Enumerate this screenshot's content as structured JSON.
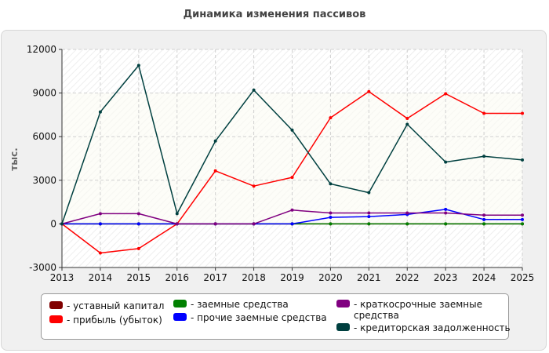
{
  "chart_data": {
    "type": "line",
    "title": "Динамика изменения пассивов",
    "ylabel": "тыс.",
    "xlabel": "",
    "x": [
      "2013",
      "2014",
      "2015",
      "2016",
      "2017",
      "2018",
      "2019",
      "2020",
      "2021",
      "2022",
      "2023",
      "2024",
      "2025"
    ],
    "ylim": [
      -3000,
      12000
    ],
    "yticks": [
      "-3000",
      "0",
      "3000",
      "6000",
      "9000",
      "12000"
    ],
    "grid": true,
    "legend_position": "bottom",
    "series": [
      {
        "name": "- уставный капитал",
        "color": "#800000",
        "values": [
          0,
          0,
          0,
          0,
          0,
          0,
          0,
          0,
          0,
          0,
          0,
          0,
          0
        ]
      },
      {
        "name": "- прибыль (убыток)",
        "color": "#ff0000",
        "values": [
          0,
          -2000,
          -1700,
          0,
          3650,
          2600,
          3200,
          7300,
          9100,
          7250,
          8950,
          7600,
          7600
        ]
      },
      {
        "name": "- заемные средства",
        "color": "#008000",
        "values": [
          0,
          0,
          0,
          0,
          0,
          0,
          0,
          0,
          0,
          0,
          0,
          0,
          0
        ]
      },
      {
        "name": "- прочие заемные средства",
        "color": "#0000ff",
        "values": [
          0,
          0,
          0,
          0,
          0,
          0,
          0,
          450,
          500,
          650,
          1000,
          300,
          300
        ]
      },
      {
        "name": "- краткосрочные заемные средства",
        "color": "#800080",
        "values": [
          0,
          700,
          700,
          0,
          0,
          0,
          950,
          750,
          750,
          750,
          750,
          600,
          600
        ]
      },
      {
        "name": "- кредиторская задолженность",
        "color": "#004040",
        "values": [
          0,
          7700,
          10900,
          700,
          5700,
          9200,
          6450,
          2750,
          2150,
          6850,
          4250,
          4650,
          4400
        ]
      }
    ]
  }
}
